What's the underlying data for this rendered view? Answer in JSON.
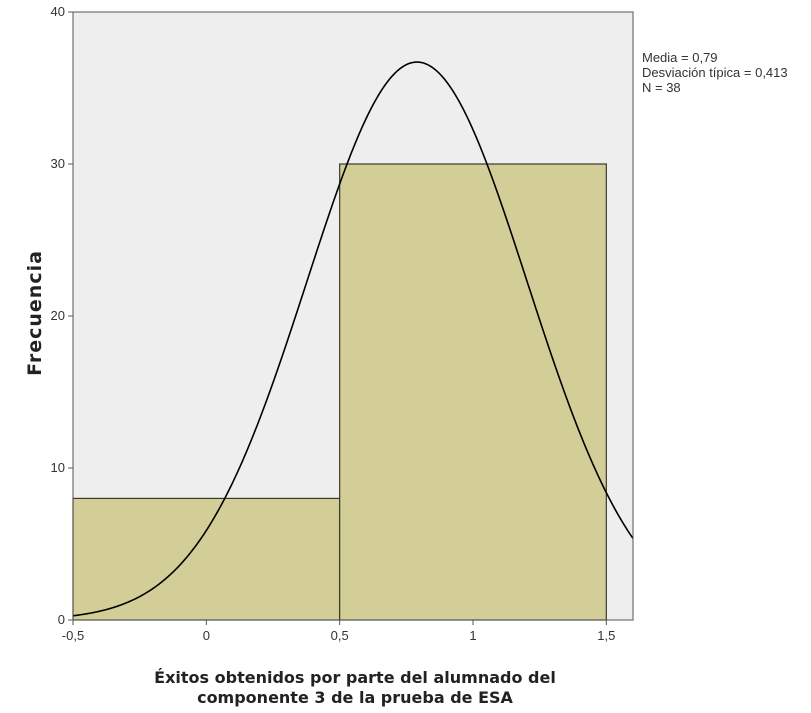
{
  "chart_data": {
    "type": "histogram",
    "ylabel": "Frecuencia",
    "xlabel_lines": [
      "Éxitos obtenidos por parte del alumnado del",
      "componente 3 de la prueba de ESA"
    ],
    "xlim": [
      -0.5,
      1.6
    ],
    "ylim": [
      0,
      40
    ],
    "grid": false,
    "x_ticks": [
      {
        "value": -0.5,
        "label": "-0,5"
      },
      {
        "value": 0,
        "label": "0"
      },
      {
        "value": 0.5,
        "label": "0,5"
      },
      {
        "value": 1,
        "label": "1"
      },
      {
        "value": 1.5,
        "label": "1,5"
      }
    ],
    "y_ticks": [
      {
        "value": 0,
        "label": "0"
      },
      {
        "value": 10,
        "label": "10"
      },
      {
        "value": 20,
        "label": "20"
      },
      {
        "value": 30,
        "label": "30"
      },
      {
        "value": 40,
        "label": "40"
      }
    ],
    "bins": [
      {
        "start": -0.5,
        "end": 0.5,
        "count": 8
      },
      {
        "start": 0.5,
        "end": 1.5,
        "count": 30
      }
    ],
    "normal_curve": {
      "mean": 0.79,
      "sd": 0.413,
      "n": 38,
      "bin_width": 1
    },
    "stats": [
      "Media = 0,79",
      "Desviación típica = 0,413",
      "N = 38"
    ],
    "colors": {
      "plot_background": "#eeeeee",
      "bar_fill": "#d3ce97",
      "bar_stroke": "#3a3a2a",
      "curve": "#000000",
      "axis": "#555555"
    }
  }
}
